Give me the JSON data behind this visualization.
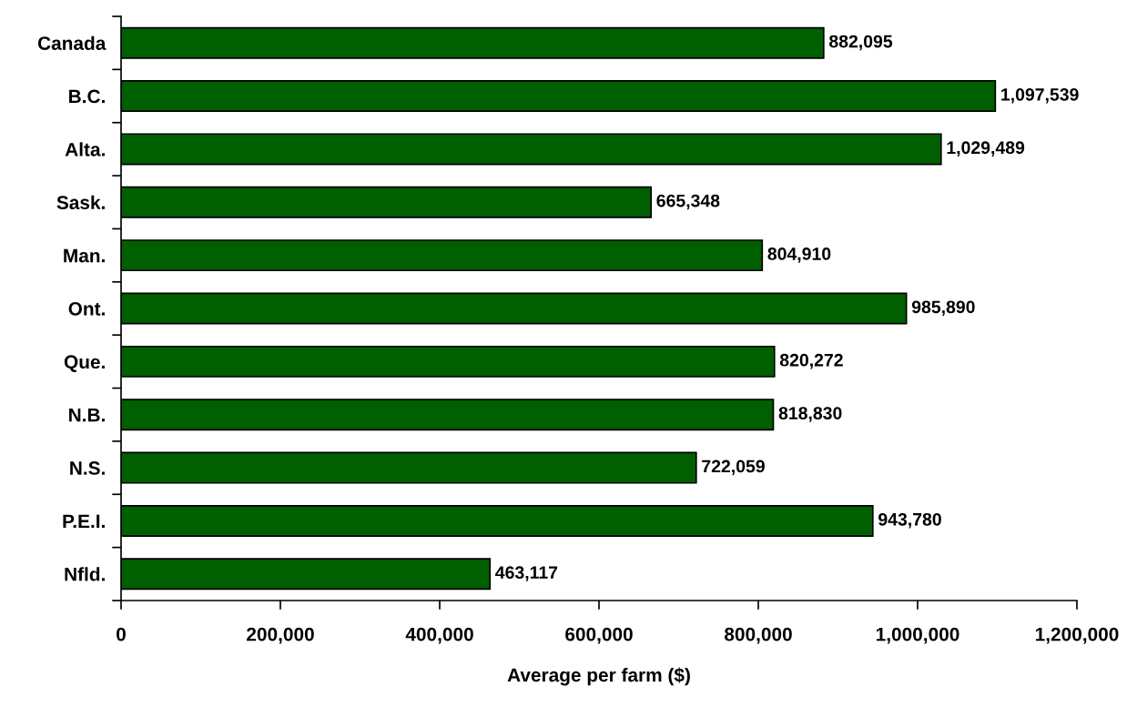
{
  "chart_data": {
    "type": "bar",
    "orientation": "horizontal",
    "categories": [
      "Canada",
      "B.C.",
      "Alta.",
      "Sask.",
      "Man.",
      "Ont.",
      "Que.",
      "N.B.",
      "N.S.",
      "P.E.I.",
      "Nfld."
    ],
    "values": [
      882095,
      1097539,
      1029489,
      665348,
      804910,
      985890,
      820272,
      818830,
      722059,
      943780,
      463117
    ],
    "value_labels": [
      "882,095",
      "1,097,539",
      "1,029,489",
      "665,348",
      "804,910",
      "985,890",
      "820,272",
      "818,830",
      "722,059",
      "943,780",
      "463,117"
    ],
    "color": "#005f00",
    "xlabel": "Average per farm ($)",
    "xlim": [
      0,
      1200000
    ],
    "xticks": [
      0,
      {
        "value": 200000,
        "label": "200,000"
      },
      {
        "value": 400000,
        "label": "400,000"
      },
      {
        "value": 600000,
        "label": "600,000"
      },
      {
        "value": 800000,
        "label": "800,000"
      },
      {
        "value": 1000000,
        "label": "1,000,000"
      },
      {
        "value": 1200000,
        "label": "1,200,000"
      }
    ],
    "grid": false,
    "legend": false
  }
}
